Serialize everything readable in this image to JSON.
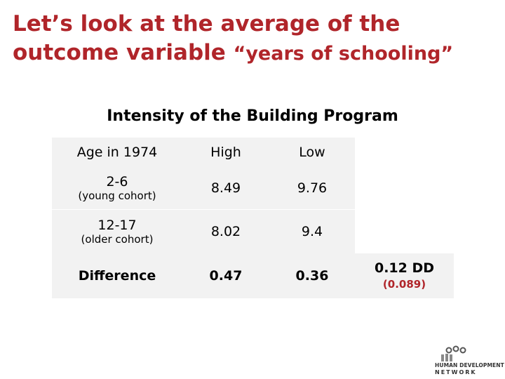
{
  "slide": {
    "title_line1": "Let’s look at the average of the",
    "title_line2_main": "outcome variable",
    "title_line2_quote": "“years of schooling”",
    "subtitle": "Intensity of the Building Program"
  },
  "table": {
    "header": {
      "age": "Age in 1974",
      "high": "High",
      "low": "Low"
    },
    "rows": [
      {
        "age": "2-6",
        "cohort": "(young cohort)",
        "high": "8.49",
        "low": "9.76"
      },
      {
        "age": "12-17",
        "cohort": "(older cohort)",
        "high": "8.02",
        "low": "9.4"
      }
    ],
    "difference": {
      "label": "Difference",
      "high": "0.47",
      "low": "0.36"
    },
    "dd": {
      "value": "0.12 DD",
      "se": "(0.089)"
    }
  },
  "logo": {
    "line1": "HUMAN DEVELOPMENT",
    "line2": "NETWORK"
  },
  "colors": {
    "title": "#b0252a",
    "cell_bg": "#f2f2f2",
    "se": "#b0252a"
  }
}
